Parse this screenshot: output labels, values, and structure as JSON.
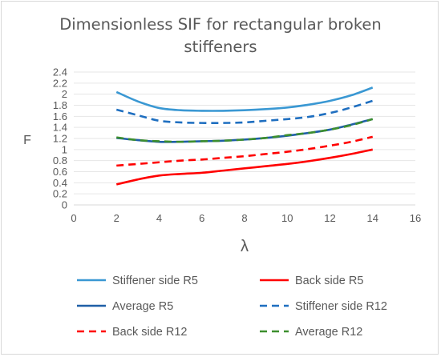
{
  "chart_data": {
    "type": "line",
    "title_line1": "Dimensionless SIF for rectangular broken",
    "title_line2": "stiffeners",
    "xlabel": "λ",
    "ylabel": "F",
    "xlim": [
      0,
      16
    ],
    "ylim": [
      0,
      2.4
    ],
    "x_ticks": [
      "0",
      "2",
      "4",
      "6",
      "8",
      "10",
      "12",
      "14",
      "16"
    ],
    "y_ticks": [
      "0",
      "0.2",
      "0.4",
      "0.6",
      "0.8",
      "1",
      "1.2",
      "1.4",
      "1.6",
      "1.8",
      "2",
      "2.2",
      "2.4"
    ],
    "grid": "horizontal",
    "legend_position": "bottom",
    "series": [
      {
        "name": "Stiffener side R5",
        "color": "#3a98d3",
        "dash": "solid",
        "x": [
          2,
          3,
          4,
          5,
          6,
          7,
          8,
          9,
          10,
          11,
          12,
          13,
          14
        ],
        "y": [
          2.04,
          1.87,
          1.75,
          1.71,
          1.7,
          1.7,
          1.71,
          1.73,
          1.76,
          1.81,
          1.88,
          1.98,
          2.12
        ]
      },
      {
        "name": "Back side R5",
        "color": "#ff0000",
        "dash": "solid",
        "x": [
          2,
          3,
          4,
          5,
          6,
          7,
          8,
          9,
          10,
          11,
          12,
          13,
          14
        ],
        "y": [
          0.37,
          0.46,
          0.53,
          0.56,
          0.58,
          0.62,
          0.66,
          0.7,
          0.74,
          0.79,
          0.85,
          0.92,
          1.0
        ]
      },
      {
        "name": "Average R5",
        "color": "#1f5fa6",
        "dash": "solid",
        "x": [
          2,
          3,
          4,
          5,
          6,
          7,
          8,
          9,
          10,
          11,
          12,
          13,
          14
        ],
        "y": [
          1.21,
          1.17,
          1.14,
          1.14,
          1.15,
          1.16,
          1.18,
          1.21,
          1.25,
          1.3,
          1.36,
          1.45,
          1.55
        ]
      },
      {
        "name": "Stiffener side R12",
        "color": "#1f6fc0",
        "dash": "dashed",
        "x": [
          2,
          3,
          4,
          5,
          6,
          7,
          8,
          9,
          10,
          11,
          12,
          13,
          14
        ],
        "y": [
          1.72,
          1.62,
          1.52,
          1.49,
          1.48,
          1.48,
          1.49,
          1.52,
          1.55,
          1.59,
          1.66,
          1.76,
          1.88
        ]
      },
      {
        "name": "Back side R12",
        "color": "#ff0000",
        "dash": "dashed",
        "x": [
          2,
          3,
          4,
          5,
          6,
          7,
          8,
          9,
          10,
          11,
          12,
          13,
          14
        ],
        "y": [
          0.71,
          0.74,
          0.77,
          0.8,
          0.82,
          0.85,
          0.88,
          0.92,
          0.96,
          1.01,
          1.07,
          1.14,
          1.23
        ]
      },
      {
        "name": "Average R12",
        "color": "#3d8f2e",
        "dash": "dashed",
        "x": [
          2,
          3,
          4,
          5,
          6,
          7,
          8,
          9,
          10,
          11,
          12,
          13,
          14
        ],
        "y": [
          1.22,
          1.17,
          1.15,
          1.14,
          1.15,
          1.16,
          1.18,
          1.21,
          1.26,
          1.3,
          1.36,
          1.44,
          1.55
        ]
      }
    ]
  }
}
